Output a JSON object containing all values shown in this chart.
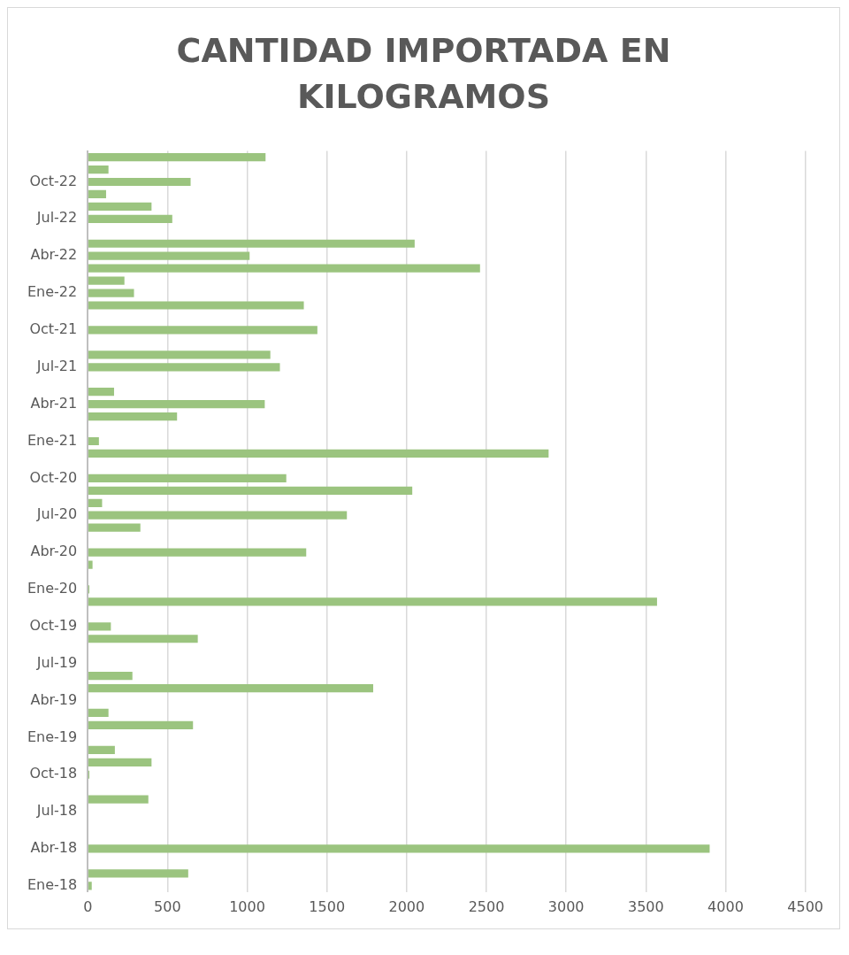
{
  "chart_data": {
    "type": "bar",
    "orientation": "horizontal",
    "title": "CANTIDAD IMPORTADA EN KILOGRAMOS",
    "categories": [
      null,
      null,
      "Oct-22",
      null,
      null,
      "Jul-22",
      null,
      null,
      "Abr-22",
      null,
      null,
      "Ene-22",
      null,
      null,
      "Oct-21",
      null,
      null,
      "Jul-21",
      null,
      null,
      "Abr-21",
      null,
      null,
      "Ene-21",
      null,
      null,
      "Oct-20",
      null,
      null,
      "Jul-20",
      null,
      null,
      "Abr-20",
      null,
      null,
      "Ene-20",
      null,
      null,
      "Oct-19",
      null,
      null,
      "Jul-19",
      null,
      null,
      "Abr-19",
      null,
      null,
      "Ene-19",
      null,
      null,
      "Oct-18",
      null,
      null,
      "Jul-18",
      null,
      null,
      "Abr-18",
      null,
      null,
      "Ene-18"
    ],
    "values": [
      1115,
      130,
      645,
      115,
      400,
      530,
      0,
      2050,
      1015,
      2460,
      230,
      290,
      1355,
      0,
      1440,
      0,
      1145,
      1205,
      0,
      165,
      1110,
      560,
      0,
      70,
      2890,
      0,
      1245,
      2035,
      90,
      1625,
      330,
      0,
      1370,
      30,
      0,
      10,
      3570,
      0,
      145,
      690,
      0,
      0,
      280,
      1790,
      0,
      130,
      660,
      0,
      170,
      400,
      10,
      0,
      380,
      0,
      0,
      0,
      3900,
      0,
      630,
      25
    ],
    "color": "#9bc47f",
    "xlim": [
      0,
      4500
    ],
    "xticks": [
      0,
      500,
      1000,
      1500,
      2000,
      2500,
      3000,
      3500,
      4000,
      4500
    ],
    "grid": "x"
  }
}
